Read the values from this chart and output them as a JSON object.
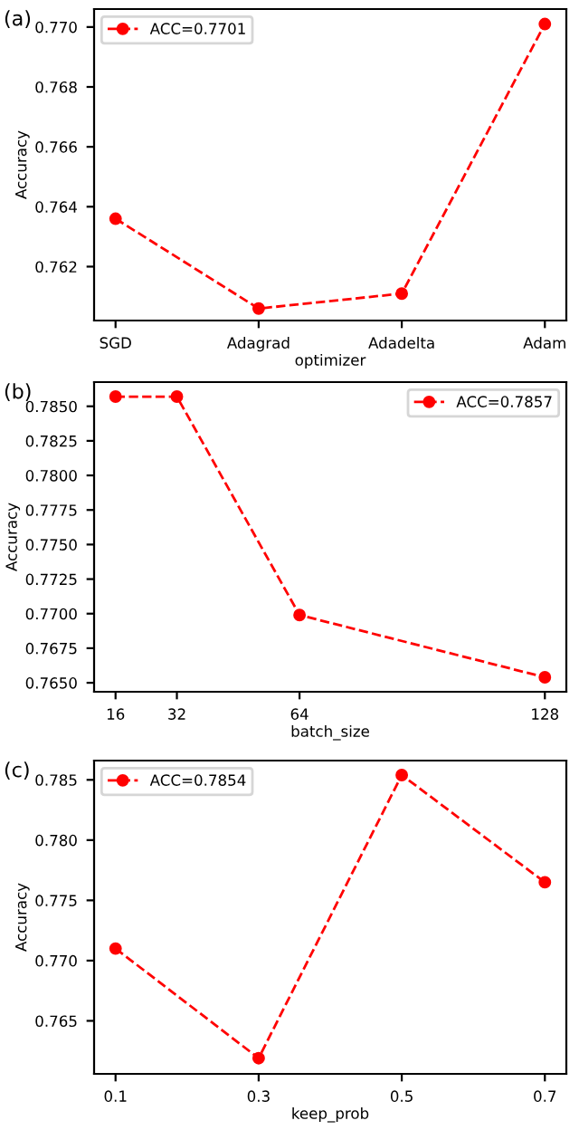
{
  "chart_data": [
    {
      "type": "line",
      "annotations": [
        "(a)"
      ],
      "xlabel": "optimizer",
      "ylabel": "Accuracy",
      "categories": [
        "SGD",
        "Adagrad",
        "Adadelta",
        "Adam"
      ],
      "series": [
        {
          "name": "ACC=0.7701",
          "color": "#ff0000",
          "values": [
            0.7636,
            0.7606,
            0.7611,
            0.7701
          ]
        }
      ],
      "ylim": [
        0.7602,
        0.7706
      ],
      "yticks": [
        0.762,
        0.764,
        0.766,
        0.768,
        {
          "value": 0.77,
          "label": "0.770"
        }
      ],
      "legend": "top left",
      "marker": "circle",
      "line_style": "dashed"
    },
    {
      "type": "line",
      "annotations": [
        "(b)"
      ],
      "xlabel": "batch_size",
      "ylabel": "Accuracy",
      "x": [
        16,
        32,
        64,
        128
      ],
      "series": [
        {
          "name": "ACC=0.7857",
          "color": "#ff0000",
          "values": [
            0.7857,
            0.7857,
            0.7699,
            0.7654
          ]
        }
      ],
      "xlim": [
        10.4,
        133.6
      ],
      "xticks": [
        16,
        32,
        64,
        128
      ],
      "ylim": [
        0.76435,
        0.78675
      ],
      "yticks": [
        {
          "value": 0.765,
          "label": "0.7650"
        },
        {
          "value": 0.7675,
          "label": "0.7675"
        },
        {
          "value": 0.77,
          "label": "0.7700"
        },
        {
          "value": 0.7725,
          "label": "0.7725"
        },
        {
          "value": 0.775,
          "label": "0.7750"
        },
        {
          "value": 0.7775,
          "label": "0.7775"
        },
        {
          "value": 0.78,
          "label": "0.7800"
        },
        {
          "value": 0.7825,
          "label": "0.7825"
        },
        {
          "value": 0.785,
          "label": "0.7850"
        }
      ],
      "legend": "top right",
      "marker": "circle",
      "line_style": "dashed"
    },
    {
      "type": "line",
      "annotations": [
        "(c)"
      ],
      "xlabel": "keep_prob",
      "ylabel": "Accuracy",
      "x": [
        0.1,
        0.3,
        0.5,
        0.7
      ],
      "series": [
        {
          "name": "ACC=0.7854",
          "color": "#ff0000",
          "values": [
            0.771,
            0.7619,
            0.7854,
            0.7765
          ]
        }
      ],
      "xlim": [
        0.07,
        0.73
      ],
      "xticks": [
        0.1,
        0.3,
        0.5,
        0.7
      ],
      "ylim": [
        0.7606,
        0.7866
      ],
      "yticks": [
        0.765,
        {
          "value": 0.77,
          "label": "0.770"
        },
        0.775,
        {
          "value": 0.78,
          "label": "0.780"
        },
        0.785
      ],
      "legend": "top left",
      "marker": "circle",
      "line_style": "dashed"
    }
  ]
}
